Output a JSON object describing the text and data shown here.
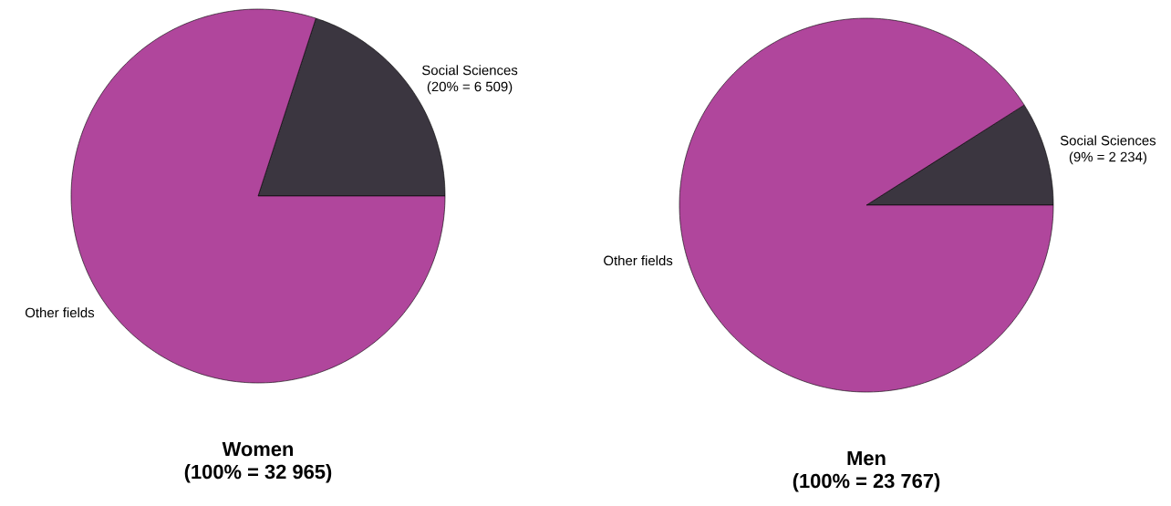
{
  "chart_data": [
    {
      "type": "pie",
      "title": "Women",
      "subtitle": "(100% = 32 965)",
      "categories": [
        "Social Sciences",
        "Other fields"
      ],
      "values": [
        20,
        80
      ],
      "colors": [
        "#3b3640",
        "#b0469c"
      ],
      "value_labels": [
        "(20% = 6 509)",
        null
      ]
    },
    {
      "type": "pie",
      "title": "Men",
      "subtitle": "(100% = 23 767)",
      "categories": [
        "Social Sciences",
        "Other fields"
      ],
      "values": [
        9,
        91
      ],
      "colors": [
        "#3b3640",
        "#b0469c"
      ],
      "value_labels": [
        "(9% = 2 234)",
        null
      ]
    }
  ]
}
